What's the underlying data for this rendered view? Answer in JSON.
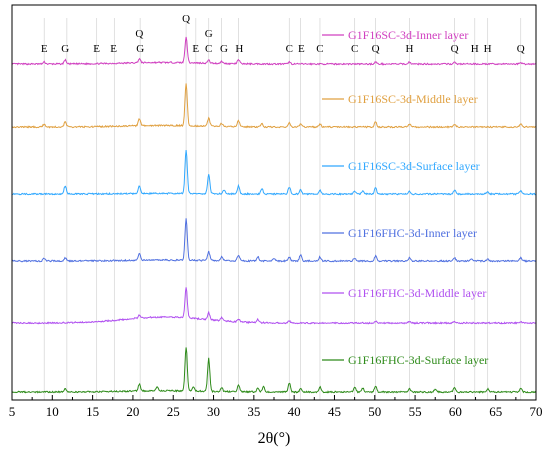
{
  "chart_data": {
    "type": "line",
    "xlabel": "2θ(°)",
    "xlim": [
      5,
      70
    ],
    "xticks": [
      5,
      10,
      15,
      20,
      25,
      30,
      35,
      40,
      45,
      50,
      55,
      60,
      65,
      70
    ],
    "grid": false,
    "vertical_guides": [
      9,
      11.8,
      15.5,
      17.7,
      20.9,
      26.6,
      27.8,
      29.4,
      31,
      33.1,
      39.4,
      40.8,
      43.2,
      47.5,
      50.1,
      54.3,
      59.9,
      62.4,
      64,
      68.1
    ],
    "peak_labels": [
      {
        "label": "E",
        "x": 9.0
      },
      {
        "label": "G",
        "x": 11.6
      },
      {
        "label": "E",
        "x": 15.5
      },
      {
        "label": "E",
        "x": 17.6
      },
      {
        "label": "Q",
        "x": 20.8,
        "row": "upper"
      },
      {
        "label": "G",
        "x": 20.9
      },
      {
        "label": "Q",
        "x": 26.6,
        "row": "top"
      },
      {
        "label": "E",
        "x": 27.8
      },
      {
        "label": "G",
        "x": 29.4,
        "row": "upper"
      },
      {
        "label": "C",
        "x": 29.4
      },
      {
        "label": "G",
        "x": 31.3
      },
      {
        "label": "H",
        "x": 33.2
      },
      {
        "label": "C",
        "x": 39.4
      },
      {
        "label": "E",
        "x": 40.9
      },
      {
        "label": "C",
        "x": 43.2
      },
      {
        "label": "C",
        "x": 47.5
      },
      {
        "label": "Q",
        "x": 50.1
      },
      {
        "label": "H",
        "x": 54.3
      },
      {
        "label": "Q",
        "x": 59.9
      },
      {
        "label": "H",
        "x": 62.4
      },
      {
        "label": "H",
        "x": 64.0
      },
      {
        "label": "Q",
        "x": 68.1
      }
    ],
    "series": [
      {
        "name": "G1F16SC-3d-Inner layer",
        "color": "#d040c0",
        "hump": 0.25,
        "peaks": [
          [
            9,
            2
          ],
          [
            11.6,
            4
          ],
          [
            20.8,
            4
          ],
          [
            26.6,
            26
          ],
          [
            29.4,
            3
          ],
          [
            31,
            2
          ],
          [
            33.1,
            4
          ],
          [
            39.4,
            2
          ],
          [
            50.1,
            2
          ],
          [
            54.3,
            2
          ],
          [
            59.9,
            1.5
          ],
          [
            68.1,
            1.5
          ]
        ]
      },
      {
        "name": "G1F16SC-3d-Middle layer",
        "color": "#e0a040",
        "hump": 0.25,
        "peaks": [
          [
            9,
            3
          ],
          [
            11.6,
            5
          ],
          [
            20.8,
            7
          ],
          [
            26.6,
            42
          ],
          [
            29.4,
            8
          ],
          [
            31,
            3
          ],
          [
            33.1,
            6
          ],
          [
            36,
            3
          ],
          [
            39.4,
            4
          ],
          [
            40.8,
            3
          ],
          [
            43.2,
            3
          ],
          [
            50.1,
            5
          ],
          [
            54.3,
            3
          ],
          [
            59.9,
            3
          ],
          [
            68.1,
            3
          ]
        ]
      },
      {
        "name": "G1F16SC-3d-Surface layer",
        "color": "#30a8ff",
        "hump": 0.1,
        "peaks": [
          [
            11.6,
            8
          ],
          [
            20.8,
            7
          ],
          [
            26.6,
            44
          ],
          [
            29.4,
            19
          ],
          [
            31.3,
            4
          ],
          [
            33.1,
            8
          ],
          [
            36,
            5
          ],
          [
            39.4,
            7
          ],
          [
            40.8,
            4
          ],
          [
            43.2,
            4
          ],
          [
            47.5,
            3
          ],
          [
            48.5,
            3
          ],
          [
            50.1,
            6
          ],
          [
            54.3,
            3
          ],
          [
            59.9,
            4
          ],
          [
            64,
            2
          ],
          [
            68.1,
            3
          ]
        ]
      },
      {
        "name": "G1F16FHC-3d-Inner layer",
        "color": "#5070e0",
        "hump": 0.15,
        "peaks": [
          [
            9,
            3
          ],
          [
            11.6,
            3
          ],
          [
            20.8,
            7
          ],
          [
            26.6,
            42
          ],
          [
            29.4,
            9
          ],
          [
            31,
            4
          ],
          [
            33.1,
            6
          ],
          [
            35.5,
            4
          ],
          [
            37.5,
            3
          ],
          [
            39.4,
            4
          ],
          [
            40.8,
            6
          ],
          [
            43.2,
            4
          ],
          [
            47.5,
            3
          ],
          [
            50.1,
            5
          ],
          [
            54.3,
            3
          ],
          [
            59.9,
            3
          ],
          [
            62,
            2
          ],
          [
            64,
            2
          ],
          [
            68.1,
            3
          ]
        ]
      },
      {
        "name": "G1F16FHC-3d-Middle layer",
        "color": "#b050f0",
        "hump": 1.0,
        "peaks": [
          [
            20.8,
            3
          ],
          [
            26.6,
            30
          ],
          [
            29.4,
            7
          ],
          [
            31,
            3
          ],
          [
            33.1,
            3
          ],
          [
            35.5,
            3
          ],
          [
            39.4,
            2
          ],
          [
            50.1,
            2
          ],
          [
            54.3,
            1.5
          ],
          [
            59.9,
            1.5
          ],
          [
            68.1,
            1.5
          ]
        ]
      },
      {
        "name": "G1F16FHC-3d-Surface layer",
        "color": "#2e8b1a",
        "hump": 0.2,
        "peaks": [
          [
            11.6,
            3
          ],
          [
            20.8,
            7
          ],
          [
            23,
            4
          ],
          [
            26.6,
            44
          ],
          [
            27.5,
            4
          ],
          [
            29.4,
            33
          ],
          [
            31,
            4
          ],
          [
            33.1,
            7
          ],
          [
            35.5,
            4
          ],
          [
            36.2,
            5
          ],
          [
            39.4,
            9
          ],
          [
            40.8,
            3
          ],
          [
            43.2,
            5
          ],
          [
            47.5,
            5
          ],
          [
            48.5,
            4
          ],
          [
            50.1,
            6
          ],
          [
            54.3,
            3
          ],
          [
            57.5,
            3
          ],
          [
            59.9,
            4
          ],
          [
            64,
            3
          ],
          [
            68.1,
            4
          ]
        ]
      }
    ]
  }
}
